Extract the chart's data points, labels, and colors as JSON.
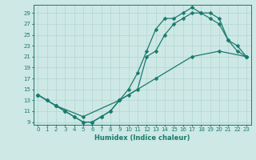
{
  "xlabel": "Humidex (Indice chaleur)",
  "bg_color": "#cde8e5",
  "line_color": "#1a7a6e",
  "grid_color": "#b8d8d5",
  "xlim": [
    -0.5,
    23.5
  ],
  "ylim": [
    8.5,
    30.5
  ],
  "xticks": [
    0,
    1,
    2,
    3,
    4,
    5,
    6,
    7,
    8,
    9,
    10,
    11,
    12,
    13,
    14,
    15,
    16,
    17,
    18,
    19,
    20,
    21,
    22,
    23
  ],
  "yticks": [
    9,
    11,
    13,
    15,
    17,
    19,
    21,
    23,
    25,
    27,
    29
  ],
  "line1_x": [
    0,
    1,
    2,
    3,
    4,
    5,
    6,
    7,
    8,
    9,
    10,
    11,
    12,
    13,
    14,
    15,
    16,
    17,
    18,
    19,
    20,
    21,
    22,
    23
  ],
  "line1_y": [
    14,
    13,
    12,
    11,
    10,
    9,
    9,
    10,
    11,
    13,
    15,
    18,
    22,
    26,
    28,
    28,
    29,
    30,
    29,
    29,
    28,
    24,
    23,
    21
  ],
  "line2_x": [
    0,
    1,
    2,
    3,
    4,
    5,
    6,
    7,
    8,
    9,
    10,
    11,
    12,
    13,
    14,
    15,
    16,
    17,
    18,
    19,
    20,
    21,
    22,
    23
  ],
  "line2_y": [
    14,
    13,
    12,
    11,
    10,
    9,
    9,
    10,
    11,
    13,
    14,
    15,
    21,
    22,
    25,
    27,
    28,
    29,
    29,
    28,
    27,
    24,
    22,
    21
  ],
  "line3_x": [
    0,
    2,
    5,
    9,
    13,
    17,
    20,
    23
  ],
  "line3_y": [
    14,
    12,
    10,
    13,
    17,
    21,
    22,
    21
  ]
}
